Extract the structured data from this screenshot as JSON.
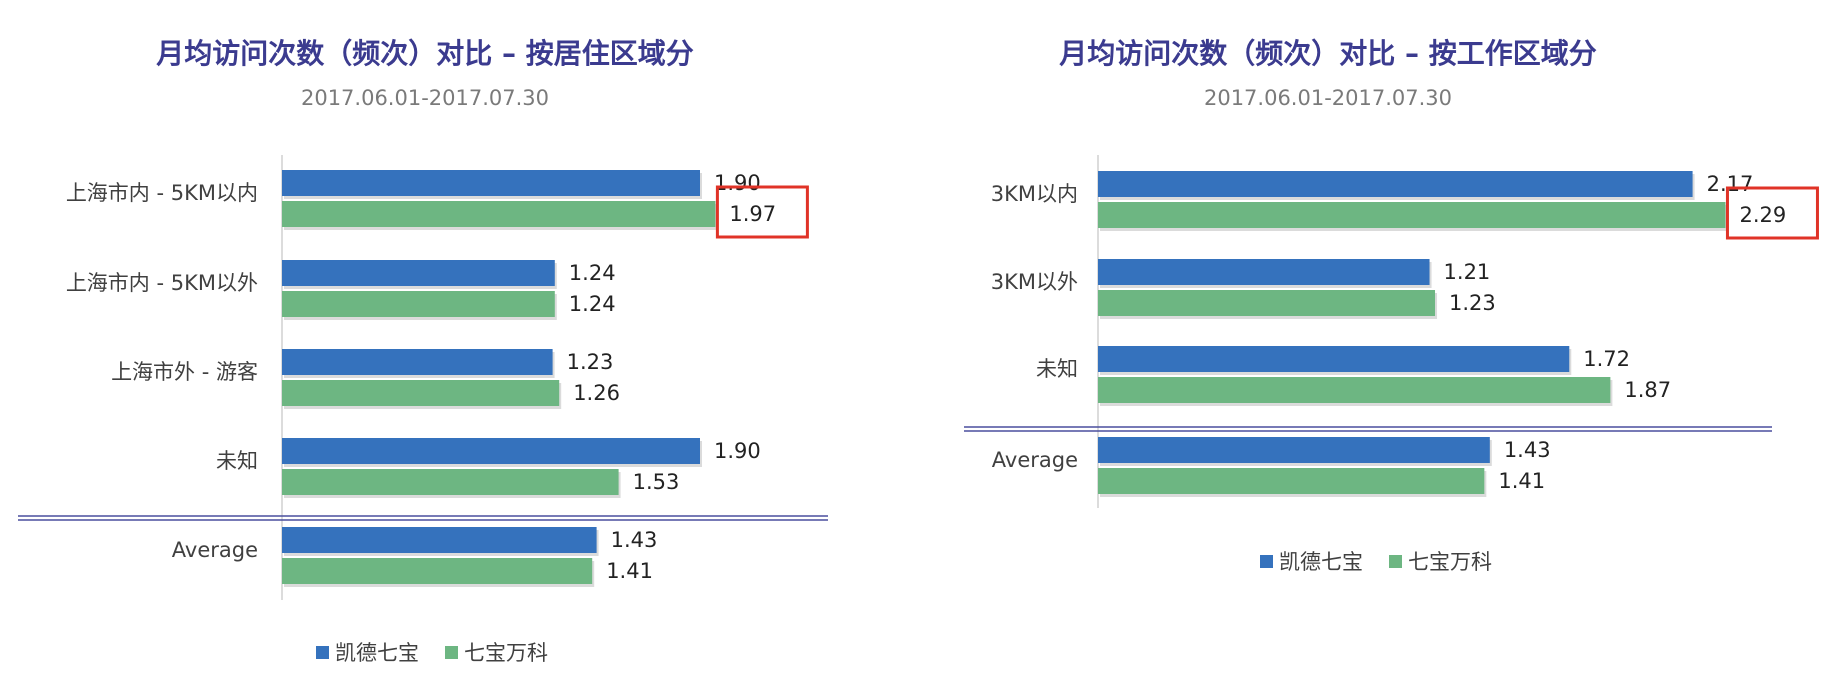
{
  "colors": {
    "series1": "#3572bd",
    "series2": "#6db682",
    "title": "#3b3b8f",
    "highlight": "#e03327",
    "divider": "#4a4f9e"
  },
  "chart_data": [
    {
      "type": "bar",
      "orientation": "horizontal",
      "title": "月均访问次数（频次）对比 – 按居住区域分",
      "subtitle": "2017.06.01-2017.07.30",
      "categories": [
        "上海市内 - 5KM以内",
        "上海市内 - 5KM以外",
        "上海市外 - 游客",
        "未知",
        "Average"
      ],
      "series": [
        {
          "name": "凯德七宝",
          "values": [
            1.9,
            1.24,
            1.23,
            1.9,
            1.43
          ],
          "labels": [
            "1.90",
            "1.24",
            "1.23",
            "1.90",
            "1.43"
          ]
        },
        {
          "name": "七宝万科",
          "values": [
            1.97,
            1.24,
            1.26,
            1.53,
            1.41
          ],
          "labels": [
            "1.97",
            "1.24",
            "1.26",
            "1.53",
            "1.41"
          ]
        }
      ],
      "xlim": [
        0,
        3.0
      ],
      "highlight": {
        "category_index": 0,
        "series_index": 1
      },
      "legend_position": "bottom",
      "grid": false
    },
    {
      "type": "bar",
      "orientation": "horizontal",
      "title": "月均访问次数（频次）对比 – 按工作区域分",
      "subtitle": "2017.06.01-2017.07.30",
      "categories": [
        "3KM以内",
        "3KM以外",
        "未知",
        "Average"
      ],
      "series": [
        {
          "name": "凯德七宝",
          "values": [
            2.17,
            1.21,
            1.72,
            1.43
          ],
          "labels": [
            "2.17",
            "1.21",
            "1.72",
            "1.43"
          ]
        },
        {
          "name": "七宝万科",
          "values": [
            2.29,
            1.23,
            1.87,
            1.41
          ],
          "labels": [
            "2.29",
            "1.23",
            "1.87",
            "1.41"
          ]
        }
      ],
      "xlim": [
        0,
        2.65
      ],
      "highlight": {
        "category_index": 0,
        "series_index": 1
      },
      "legend_position": "bottom",
      "grid": false
    }
  ]
}
